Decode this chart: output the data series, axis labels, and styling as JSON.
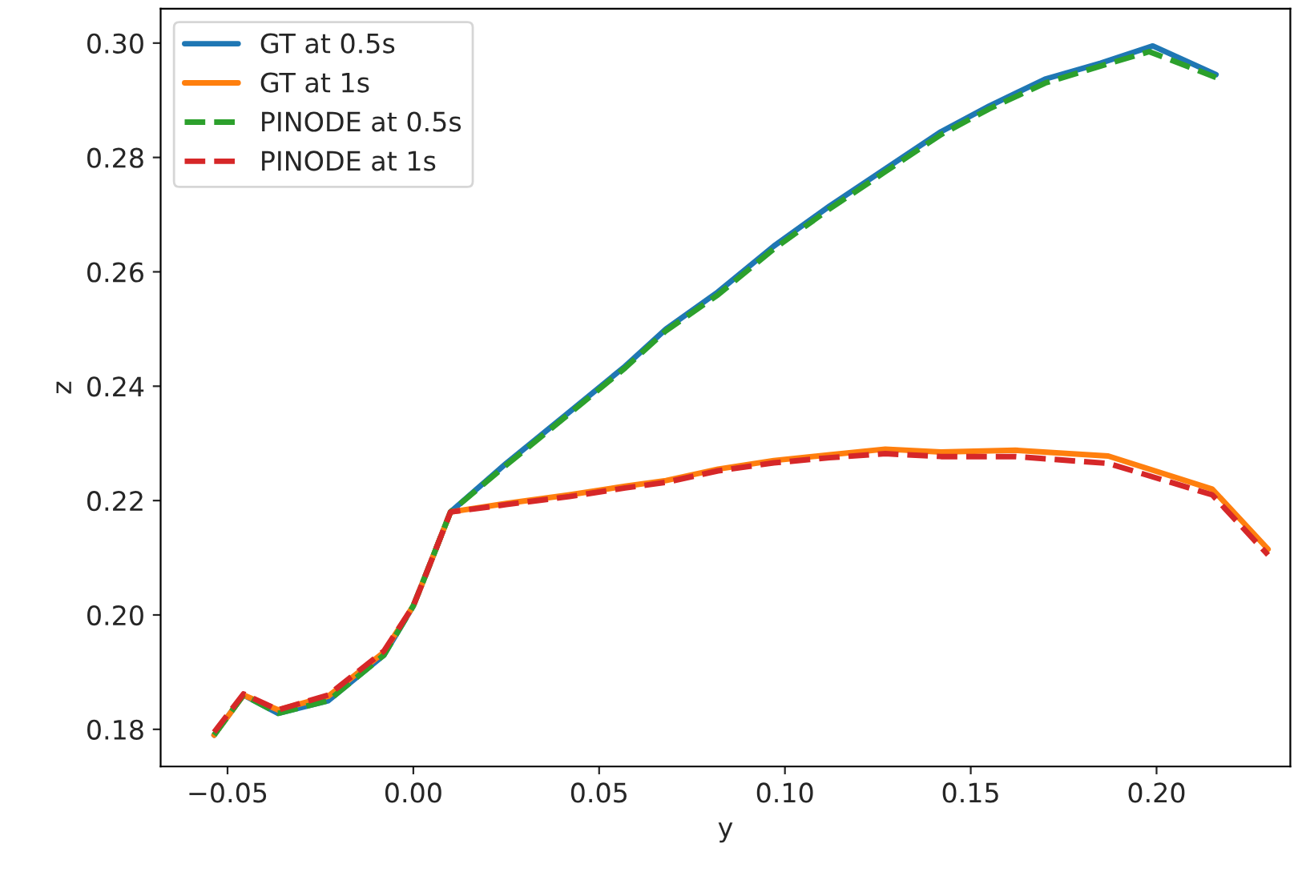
{
  "chart_data": {
    "type": "line",
    "xlabel": "y",
    "ylabel": "z",
    "xlim": [
      -0.068,
      0.236
    ],
    "xticks": [
      {
        "value": -0.05,
        "label": "−0.05"
      },
      {
        "value": 0.0,
        "label": "0.00"
      },
      {
        "value": 0.05,
        "label": "0.05"
      },
      {
        "value": 0.1,
        "label": "0.10"
      },
      {
        "value": 0.15,
        "label": "0.15"
      },
      {
        "value": 0.2,
        "label": "0.20"
      }
    ],
    "ylim": [
      0.1735,
      0.306
    ],
    "yticks": [
      {
        "value": 0.18,
        "label": "0.18"
      },
      {
        "value": 0.2,
        "label": "0.20"
      },
      {
        "value": 0.22,
        "label": "0.22"
      },
      {
        "value": 0.24,
        "label": "0.24"
      },
      {
        "value": 0.26,
        "label": "0.26"
      },
      {
        "value": 0.28,
        "label": "0.28"
      },
      {
        "value": 0.3,
        "label": "0.30"
      }
    ],
    "grid": false,
    "legend": "top left",
    "series": [
      {
        "name": "GT at 0.5s",
        "color": "#1f77b4",
        "line_style": "solid",
        "x": [
          -0.0536,
          -0.0457,
          -0.0364,
          -0.0229,
          -0.0079,
          0.0,
          0.0029,
          0.01,
          0.025,
          0.042,
          0.057,
          0.068,
          0.082,
          0.097,
          0.112,
          0.127,
          0.142,
          0.155,
          0.17,
          0.185,
          0.199,
          0.216
        ],
        "values": [
          0.179,
          0.186,
          0.1828,
          0.185,
          0.193,
          0.2016,
          0.2063,
          0.218,
          0.2265,
          0.2355,
          0.2435,
          0.25,
          0.2565,
          0.2645,
          0.2715,
          0.278,
          0.2845,
          0.289,
          0.2937,
          0.2965,
          0.2995,
          0.2945
        ]
      },
      {
        "name": "GT at 1s",
        "color": "#ff7f0e",
        "line_style": "solid",
        "x": [
          -0.0536,
          -0.0457,
          -0.0364,
          -0.0229,
          -0.0079,
          0.0,
          0.0029,
          0.01,
          0.025,
          0.042,
          0.057,
          0.068,
          0.082,
          0.097,
          0.112,
          0.127,
          0.142,
          0.162,
          0.187,
          0.215,
          0.23
        ],
        "values": [
          0.179,
          0.186,
          0.1834,
          0.1858,
          0.1935,
          0.2016,
          0.2063,
          0.218,
          0.2195,
          0.221,
          0.2225,
          0.2235,
          0.2255,
          0.227,
          0.228,
          0.229,
          0.2285,
          0.2288,
          0.2278,
          0.222,
          0.2115
        ]
      },
      {
        "name": "PINODE at 0.5s",
        "color": "#2ca02c",
        "line_style": "dashed",
        "x": [
          -0.0536,
          -0.0457,
          -0.0364,
          -0.0229,
          -0.0079,
          0.0,
          0.0029,
          0.01,
          0.025,
          0.042,
          0.057,
          0.068,
          0.082,
          0.097,
          0.112,
          0.127,
          0.142,
          0.155,
          0.17,
          0.185,
          0.198,
          0.216
        ],
        "values": [
          0.179,
          0.186,
          0.1828,
          0.185,
          0.193,
          0.2016,
          0.2063,
          0.218,
          0.2262,
          0.2352,
          0.2432,
          0.2497,
          0.256,
          0.264,
          0.271,
          0.2775,
          0.284,
          0.2885,
          0.293,
          0.296,
          0.2985,
          0.294
        ]
      },
      {
        "name": "PINODE at 1s",
        "color": "#d62728",
        "line_style": "dashed",
        "x": [
          -0.0536,
          -0.0457,
          -0.0364,
          -0.0229,
          -0.0079,
          0.0,
          0.0029,
          0.01,
          0.025,
          0.042,
          0.057,
          0.068,
          0.082,
          0.097,
          0.112,
          0.127,
          0.142,
          0.162,
          0.187,
          0.215,
          0.23
        ],
        "values": [
          0.1795,
          0.1862,
          0.1834,
          0.186,
          0.1937,
          0.2016,
          0.2063,
          0.218,
          0.2193,
          0.2207,
          0.2222,
          0.2232,
          0.2252,
          0.2266,
          0.2275,
          0.2282,
          0.2277,
          0.2277,
          0.2265,
          0.221,
          0.2105
        ]
      }
    ]
  }
}
